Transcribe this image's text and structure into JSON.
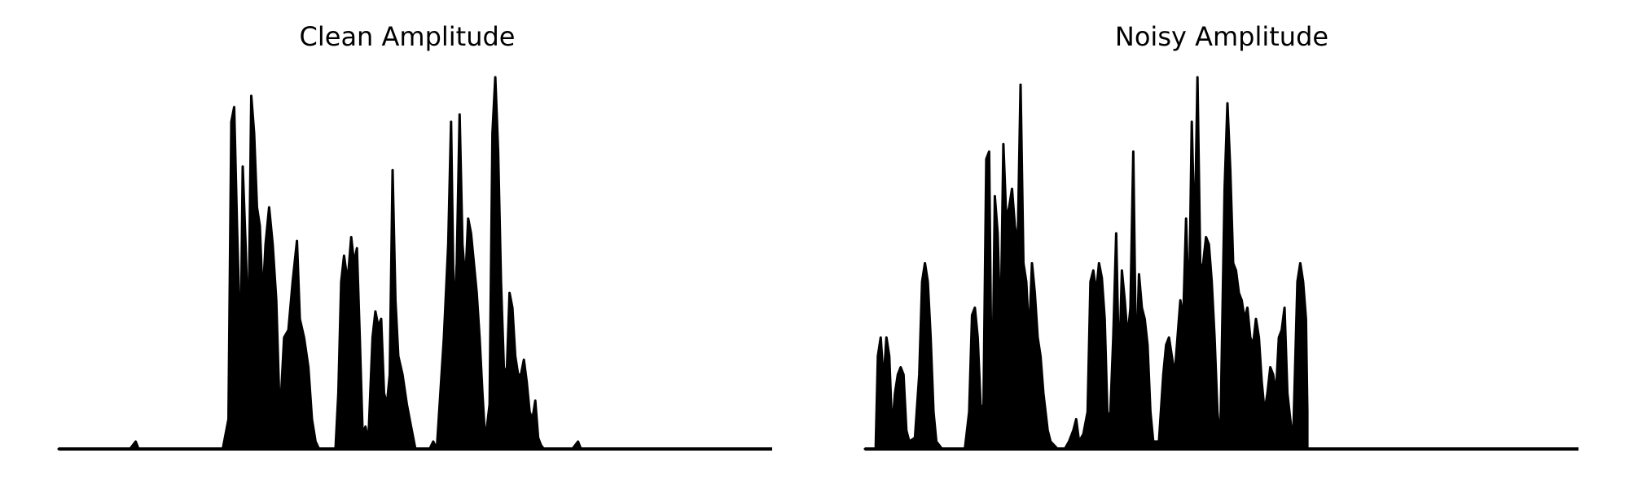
{
  "colors": {
    "line": "#000000",
    "background": "#ffffff"
  },
  "chart_data": [
    {
      "type": "line",
      "title": "Clean Amplitude",
      "xlabel": "",
      "ylabel": "",
      "axes_visible": false,
      "grid": false,
      "xlim": [
        0,
        1000
      ],
      "ylim": [
        0,
        1.0
      ],
      "envelope": [
        [
          0,
          0
        ],
        [
          100,
          0
        ],
        [
          108,
          0.02
        ],
        [
          112,
          0
        ],
        [
          230,
          0
        ],
        [
          238,
          0.08
        ],
        [
          242,
          0.88
        ],
        [
          246,
          0.92
        ],
        [
          250,
          0.6
        ],
        [
          255,
          0.25
        ],
        [
          258,
          0.76
        ],
        [
          262,
          0.55
        ],
        [
          266,
          0.3
        ],
        [
          270,
          0.95
        ],
        [
          274,
          0.85
        ],
        [
          278,
          0.65
        ],
        [
          282,
          0.6
        ],
        [
          286,
          0.4
        ],
        [
          290,
          0.55
        ],
        [
          295,
          0.65
        ],
        [
          300,
          0.55
        ],
        [
          305,
          0.4
        ],
        [
          310,
          0.08
        ],
        [
          316,
          0.3
        ],
        [
          322,
          0.32
        ],
        [
          328,
          0.45
        ],
        [
          334,
          0.56
        ],
        [
          338,
          0.35
        ],
        [
          344,
          0.3
        ],
        [
          350,
          0.22
        ],
        [
          355,
          0.08
        ],
        [
          360,
          0.02
        ],
        [
          365,
          0
        ],
        [
          388,
          0
        ],
        [
          392,
          0.15
        ],
        [
          396,
          0.45
        ],
        [
          400,
          0.52
        ],
        [
          405,
          0.45
        ],
        [
          410,
          0.57
        ],
        [
          414,
          0.5
        ],
        [
          418,
          0.54
        ],
        [
          422,
          0.3
        ],
        [
          426,
          0.04
        ],
        [
          430,
          0.06
        ],
        [
          434,
          0.02
        ],
        [
          440,
          0.3
        ],
        [
          444,
          0.37
        ],
        [
          448,
          0.33
        ],
        [
          452,
          0.35
        ],
        [
          456,
          0.15
        ],
        [
          460,
          0.12
        ],
        [
          464,
          0.2
        ],
        [
          468,
          0.75
        ],
        [
          472,
          0.4
        ],
        [
          476,
          0.25
        ],
        [
          482,
          0.2
        ],
        [
          488,
          0.12
        ],
        [
          494,
          0.06
        ],
        [
          500,
          0
        ],
        [
          520,
          0
        ],
        [
          525,
          0.02
        ],
        [
          530,
          0
        ],
        [
          540,
          0.3
        ],
        [
          546,
          0.55
        ],
        [
          550,
          0.88
        ],
        [
          554,
          0.35
        ],
        [
          558,
          0.5
        ],
        [
          562,
          0.9
        ],
        [
          566,
          0.55
        ],
        [
          570,
          0.45
        ],
        [
          574,
          0.62
        ],
        [
          578,
          0.58
        ],
        [
          582,
          0.5
        ],
        [
          586,
          0.42
        ],
        [
          590,
          0.3
        ],
        [
          594,
          0.15
        ],
        [
          598,
          0.02
        ],
        [
          604,
          0.12
        ],
        [
          608,
          0.85
        ],
        [
          612,
          1.0
        ],
        [
          616,
          0.8
        ],
        [
          620,
          0.45
        ],
        [
          624,
          0.22
        ],
        [
          628,
          0.2
        ],
        [
          632,
          0.42
        ],
        [
          636,
          0.38
        ],
        [
          640,
          0.25
        ],
        [
          644,
          0.2
        ],
        [
          648,
          0.2
        ],
        [
          652,
          0.24
        ],
        [
          656,
          0.18
        ],
        [
          660,
          0.1
        ],
        [
          664,
          0.08
        ],
        [
          668,
          0.13
        ],
        [
          672,
          0.03
        ],
        [
          676,
          0.01
        ],
        [
          680,
          0
        ],
        [
          720,
          0
        ],
        [
          728,
          0.02
        ],
        [
          732,
          0
        ],
        [
          765,
          0
        ]
      ]
    },
    {
      "type": "line",
      "title": "Noisy Amplitude",
      "xlabel": "",
      "ylabel": "",
      "axes_visible": false,
      "grid": false,
      "xlim": [
        0,
        1000
      ],
      "ylim": [
        0,
        1.0
      ],
      "envelope": [
        [
          0,
          0
        ],
        [
          15,
          0
        ],
        [
          18,
          0.25
        ],
        [
          22,
          0.3
        ],
        [
          26,
          0.18
        ],
        [
          30,
          0.3
        ],
        [
          34,
          0.25
        ],
        [
          38,
          0.05
        ],
        [
          42,
          0.15
        ],
        [
          46,
          0.2
        ],
        [
          50,
          0.22
        ],
        [
          54,
          0.2
        ],
        [
          58,
          0.05
        ],
        [
          62,
          0.02
        ],
        [
          70,
          0.03
        ],
        [
          76,
          0.2
        ],
        [
          80,
          0.45
        ],
        [
          84,
          0.5
        ],
        [
          88,
          0.45
        ],
        [
          92,
          0.3
        ],
        [
          96,
          0.1
        ],
        [
          100,
          0.02
        ],
        [
          108,
          0
        ],
        [
          140,
          0
        ],
        [
          146,
          0.1
        ],
        [
          150,
          0.36
        ],
        [
          154,
          0.38
        ],
        [
          158,
          0.3
        ],
        [
          162,
          0.12
        ],
        [
          166,
          0.1
        ],
        [
          170,
          0.78
        ],
        [
          174,
          0.8
        ],
        [
          178,
          0.05
        ],
        [
          182,
          0.68
        ],
        [
          186,
          0.58
        ],
        [
          190,
          0.3
        ],
        [
          194,
          0.82
        ],
        [
          198,
          0.62
        ],
        [
          202,
          0.65
        ],
        [
          206,
          0.7
        ],
        [
          210,
          0.6
        ],
        [
          214,
          0.55
        ],
        [
          218,
          0.98
        ],
        [
          222,
          0.5
        ],
        [
          226,
          0.45
        ],
        [
          230,
          0.3
        ],
        [
          234,
          0.5
        ],
        [
          238,
          0.42
        ],
        [
          242,
          0.3
        ],
        [
          246,
          0.25
        ],
        [
          250,
          0.15
        ],
        [
          256,
          0.05
        ],
        [
          260,
          0.02
        ],
        [
          270,
          0
        ],
        [
          280,
          0
        ],
        [
          286,
          0.02
        ],
        [
          292,
          0.05
        ],
        [
          296,
          0.08
        ],
        [
          300,
          0.02
        ],
        [
          306,
          0.04
        ],
        [
          312,
          0.1
        ],
        [
          316,
          0.45
        ],
        [
          320,
          0.48
        ],
        [
          324,
          0.42
        ],
        [
          328,
          0.5
        ],
        [
          332,
          0.46
        ],
        [
          336,
          0.35
        ],
        [
          340,
          0.08
        ],
        [
          344,
          0.1
        ],
        [
          348,
          0.3
        ],
        [
          352,
          0.58
        ],
        [
          356,
          0.2
        ],
        [
          360,
          0.48
        ],
        [
          364,
          0.4
        ],
        [
          368,
          0.3
        ],
        [
          372,
          0.38
        ],
        [
          376,
          0.8
        ],
        [
          380,
          0.2
        ],
        [
          384,
          0.47
        ],
        [
          388,
          0.38
        ],
        [
          392,
          0.35
        ],
        [
          396,
          0.28
        ],
        [
          400,
          0.1
        ],
        [
          404,
          0.02
        ],
        [
          412,
          0.02
        ],
        [
          418,
          0.2
        ],
        [
          422,
          0.28
        ],
        [
          426,
          0.3
        ],
        [
          430,
          0.25
        ],
        [
          434,
          0.2
        ],
        [
          438,
          0.3
        ],
        [
          442,
          0.4
        ],
        [
          446,
          0.35
        ],
        [
          450,
          0.62
        ],
        [
          454,
          0.35
        ],
        [
          458,
          0.88
        ],
        [
          462,
          0.55
        ],
        [
          466,
          1.0
        ],
        [
          470,
          0.48
        ],
        [
          474,
          0.5
        ],
        [
          478,
          0.57
        ],
        [
          482,
          0.55
        ],
        [
          486,
          0.45
        ],
        [
          490,
          0.3
        ],
        [
          494,
          0.1
        ],
        [
          498,
          0.02
        ],
        [
          504,
          0.7
        ],
        [
          508,
          0.93
        ],
        [
          512,
          0.75
        ],
        [
          516,
          0.5
        ],
        [
          520,
          0.48
        ],
        [
          524,
          0.42
        ],
        [
          528,
          0.4
        ],
        [
          532,
          0.35
        ],
        [
          536,
          0.38
        ],
        [
          540,
          0.3
        ],
        [
          544,
          0.28
        ],
        [
          548,
          0.35
        ],
        [
          552,
          0.3
        ],
        [
          556,
          0.18
        ],
        [
          560,
          0.1
        ],
        [
          564,
          0.15
        ],
        [
          568,
          0.22
        ],
        [
          572,
          0.2
        ],
        [
          576,
          0.15
        ],
        [
          580,
          0.3
        ],
        [
          584,
          0.32
        ],
        [
          588,
          0.38
        ],
        [
          592,
          0.15
        ],
        [
          596,
          0.08
        ],
        [
          600,
          0.02
        ],
        [
          606,
          0.45
        ],
        [
          610,
          0.5
        ],
        [
          614,
          0.45
        ],
        [
          618,
          0.35
        ],
        [
          620,
          0.1
        ]
      ]
    }
  ]
}
